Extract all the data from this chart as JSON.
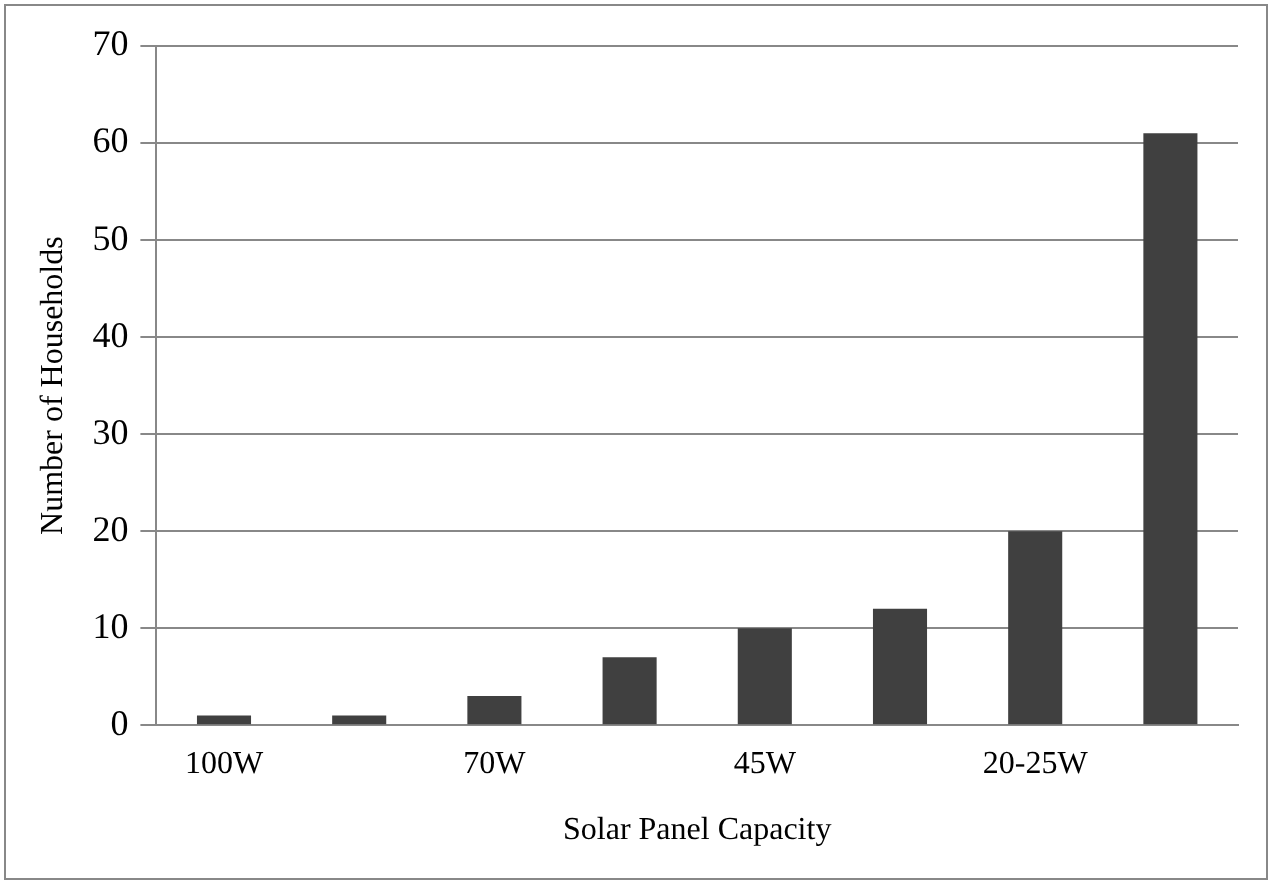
{
  "chart_data": {
    "type": "bar",
    "xlabel": "Solar Panel Capacity",
    "ylabel": "Number of Households",
    "categories": [
      "100W",
      null,
      "70W",
      null,
      "45W",
      null,
      "20-25W",
      null
    ],
    "values": [
      1,
      1,
      3,
      7,
      10,
      12,
      20,
      61
    ],
    "color": "#404040",
    "ylim": [
      0,
      70
    ],
    "yticks": [
      0,
      10,
      20,
      30,
      40,
      50,
      60,
      70
    ],
    "grid": "y",
    "legend": false
  }
}
